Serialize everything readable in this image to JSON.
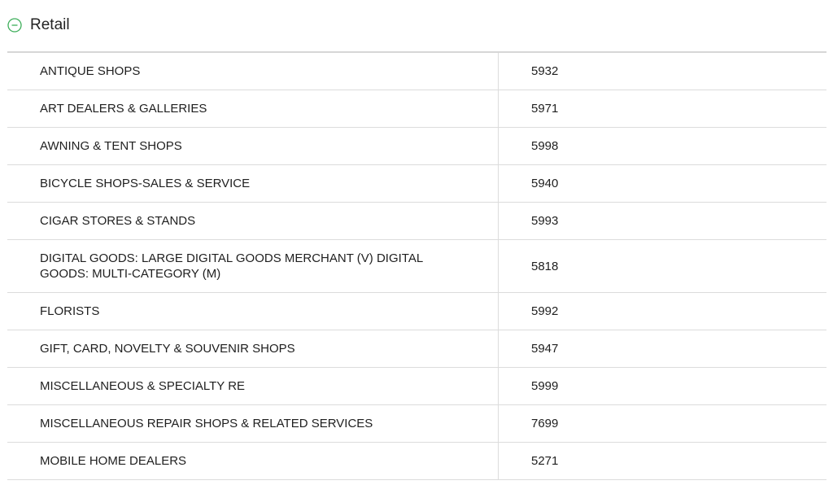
{
  "section": {
    "title": "Retail",
    "icon": "collapse-minus-circle-icon",
    "accent_color": "#3dae5a"
  },
  "rows": [
    {
      "name": "ANTIQUE SHOPS",
      "code": "5932"
    },
    {
      "name": "ART DEALERS & GALLERIES",
      "code": "5971"
    },
    {
      "name": "AWNING & TENT SHOPS",
      "code": "5998"
    },
    {
      "name": "BICYCLE SHOPS-SALES & SERVICE",
      "code": "5940"
    },
    {
      "name": "CIGAR STORES & STANDS",
      "code": "5993"
    },
    {
      "name": "DIGITAL GOODS: LARGE DIGITAL GOODS MERCHANT (V) DIGITAL GOODS: MULTI-CATEGORY (M)",
      "code": "5818"
    },
    {
      "name": "FLORISTS",
      "code": "5992"
    },
    {
      "name": "GIFT, CARD, NOVELTY & SOUVENIR SHOPS",
      "code": "5947"
    },
    {
      "name": "MISCELLANEOUS & SPECIALTY RE",
      "code": "5999"
    },
    {
      "name": "MISCELLANEOUS REPAIR SHOPS & RELATED SERVICES",
      "code": "7699"
    },
    {
      "name": "MOBILE HOME DEALERS",
      "code": "5271"
    }
  ]
}
